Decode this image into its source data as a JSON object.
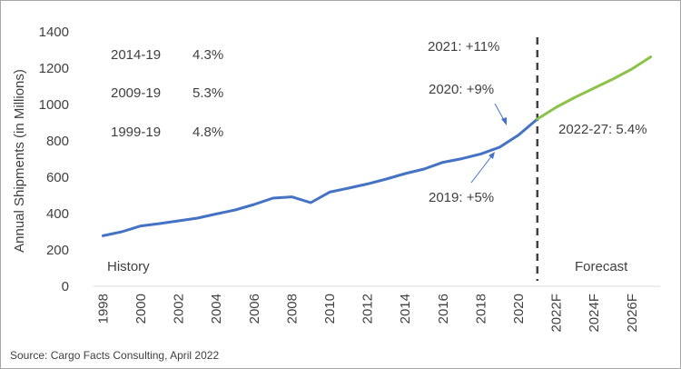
{
  "chart_data": {
    "type": "line",
    "ylabel": "Annual Shipments (in Millions)",
    "ylim": [
      0,
      1400
    ],
    "yticks": [
      0,
      200,
      400,
      600,
      800,
      1000,
      1200,
      1400
    ],
    "x_tick_labels": [
      "1998",
      "2000",
      "2002",
      "2004",
      "2006",
      "2008",
      "2010",
      "2012",
      "2014",
      "2016",
      "2018",
      "2020",
      "2022F",
      "2024F",
      "2026F"
    ],
    "series": [
      {
        "color": "#4472c4",
        "x": [
          1998,
          1999,
          2000,
          2001,
          2002,
          2003,
          2004,
          2005,
          2006,
          2007,
          2008,
          2009,
          2010,
          2011,
          2012,
          2013,
          2014,
          2015,
          2016,
          2017,
          2018,
          2019,
          2020,
          2021
        ],
        "values": [
          278,
          300,
          332,
          345,
          360,
          375,
          398,
          420,
          450,
          485,
          492,
          460,
          518,
          540,
          563,
          590,
          620,
          645,
          682,
          702,
          728,
          765,
          832,
          920
        ]
      },
      {
        "color": "#8bc34a",
        "x": [
          2021,
          2022,
          2023,
          2024,
          2025,
          2026,
          2027
        ],
        "values": [
          920,
          985,
          1040,
          1090,
          1140,
          1195,
          1262
        ]
      }
    ],
    "forecast_divider_x": 2021,
    "grid": false,
    "annotations": {
      "cagr_rows": [
        {
          "period": "2014-19",
          "rate": "4.3%"
        },
        {
          "period": "2009-19",
          "rate": "5.3%"
        },
        {
          "period": "1999-19",
          "rate": "4.8%"
        }
      ],
      "y2021": "2021: +11%",
      "y2020": "2020: +9%",
      "y2019": "2019: +5%",
      "forecast_cagr": "2022-27: 5.4%",
      "history": "History",
      "forecast": "Forecast"
    }
  },
  "source": "Source: Cargo Facts Consulting, April 2022"
}
